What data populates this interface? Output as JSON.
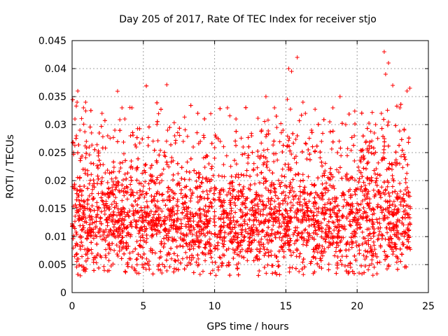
{
  "chart_data": {
    "type": "scatter",
    "title": "Day 205 of 2017, Rate Of TEC Index for receiver stjo",
    "xlabel": "GPS time / hours",
    "ylabel": "ROTI / TECUs",
    "xlim": [
      0,
      25
    ],
    "ylim": [
      0,
      0.045
    ],
    "x_ticks": [
      0,
      5,
      10,
      15,
      20,
      25
    ],
    "x_tick_labels": [
      "0",
      "5",
      "10",
      "15",
      "20",
      "25"
    ],
    "y_ticks": [
      0,
      0.005,
      0.01,
      0.015,
      0.02,
      0.025,
      0.03,
      0.035,
      0.04,
      0.045
    ],
    "y_tick_labels": [
      "0",
      "0.005",
      "0.01",
      "0.015",
      "0.02",
      "0.025",
      "0.03",
      "0.035",
      "0.04",
      "0.045"
    ],
    "grid": true,
    "marker": "+",
    "marker_color": "#ff0000",
    "data_time_range": [
      0,
      23.75
    ],
    "series": [
      {
        "name": "ROTI",
        "x": [
          0.05,
          0.1,
          0.2,
          0.3,
          0.35,
          0.4,
          0.55,
          0.8,
          0.95,
          1.0,
          1.2,
          1.5,
          2.1,
          2.5,
          3.0,
          3.5,
          3.7,
          4.1,
          4.2,
          4.5,
          5.0,
          5.5,
          6.0,
          6.3,
          6.7,
          7.2,
          7.8,
          8.5,
          9.0,
          9.6,
          10.0,
          10.4,
          10.9,
          11.5,
          12.0,
          12.6,
          13.3,
          13.6,
          14.2,
          14.8,
          15.1,
          15.2,
          15.4,
          15.8,
          16.2,
          16.8,
          17.5,
          18.3,
          18.8,
          19.2,
          19.8,
          20.5,
          21.3,
          21.7,
          21.9,
          22.0,
          22.2,
          22.5,
          23.0,
          23.3,
          23.5,
          23.7
        ],
        "y": [
          0.012,
          0.025,
          0.031,
          0.028,
          0.034,
          0.036,
          0.029,
          0.033,
          0.034,
          0.027,
          0.026,
          0.023,
          0.032,
          0.028,
          0.029,
          0.033,
          0.031,
          0.028,
          0.033,
          0.026,
          0.019,
          0.021,
          0.018,
          0.0035,
          0.029,
          0.028,
          0.027,
          0.026,
          0.027,
          0.023,
          0.024,
          0.027,
          0.033,
          0.031,
          0.026,
          0.028,
          0.029,
          0.035,
          0.033,
          0.029,
          0.0345,
          0.04,
          0.0395,
          0.042,
          0.034,
          0.029,
          0.027,
          0.033,
          0.035,
          0.03,
          0.028,
          0.024,
          0.03,
          0.032,
          0.043,
          0.039,
          0.041,
          0.037,
          0.033,
          0.029,
          0.036,
          0.0365
        ]
      }
    ]
  }
}
